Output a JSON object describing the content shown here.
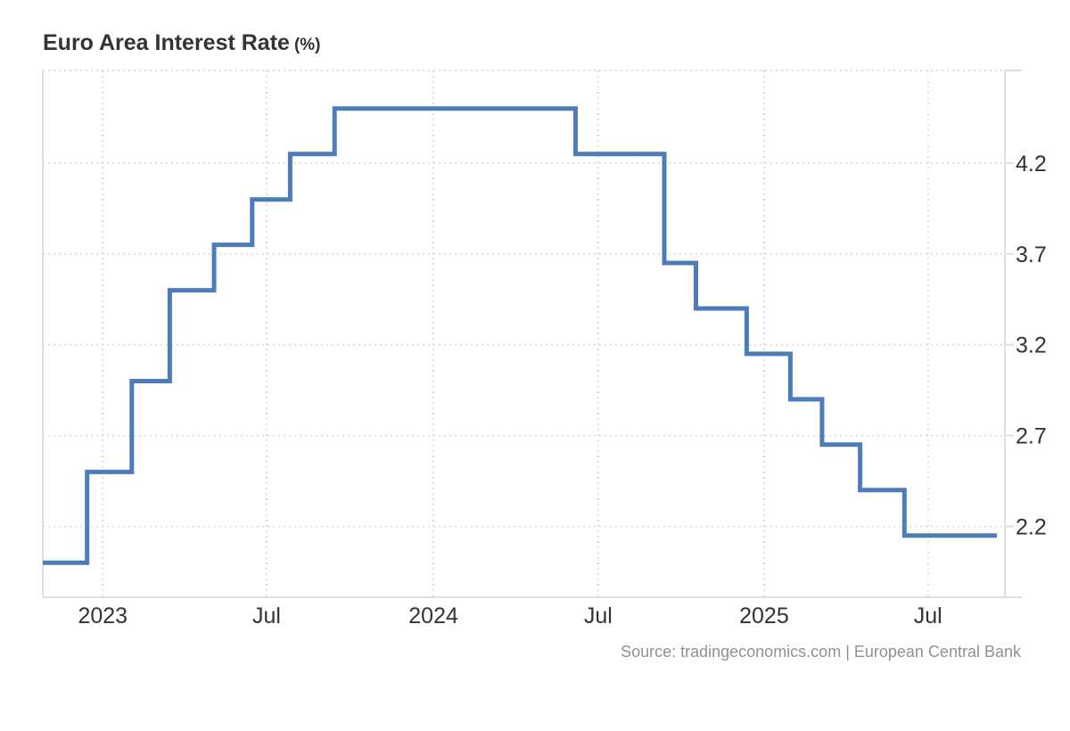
{
  "header": {
    "title": "Euro Area Interest Rate",
    "title_suffix": "(%)"
  },
  "footer": {
    "source": "Source: tradingeconomics.com | European Central Bank"
  },
  "chart_data": {
    "type": "line",
    "step": true,
    "title": "Euro Area Interest Rate (%)",
    "ylabel": "",
    "xlabel": "",
    "legend": "none",
    "grid": "dotted",
    "series": [
      {
        "name": "Euro Area Interest Rate",
        "points": [
          [
            "2022-10-27",
            2.0
          ],
          [
            "2022-12-15",
            2.5
          ],
          [
            "2023-02-02",
            3.0
          ],
          [
            "2023-03-16",
            3.5
          ],
          [
            "2023-05-04",
            3.75
          ],
          [
            "2023-06-15",
            4.0
          ],
          [
            "2023-07-27",
            4.25
          ],
          [
            "2023-09-14",
            4.5
          ],
          [
            "2024-06-06",
            4.25
          ],
          [
            "2024-09-12",
            3.65
          ],
          [
            "2024-10-17",
            3.4
          ],
          [
            "2024-12-12",
            3.15
          ],
          [
            "2025-01-30",
            2.9
          ],
          [
            "2025-03-06",
            2.65
          ],
          [
            "2025-04-17",
            2.4
          ],
          [
            "2025-06-05",
            2.15
          ],
          [
            "2025-09-15",
            2.15
          ]
        ]
      }
    ],
    "x_ticks": [
      {
        "date": "2023-01-01",
        "label": "2023"
      },
      {
        "date": "2023-07-01",
        "label": "Jul"
      },
      {
        "date": "2024-01-01",
        "label": "2024"
      },
      {
        "date": "2024-07-01",
        "label": "Jul"
      },
      {
        "date": "2025-01-01",
        "label": "2025"
      },
      {
        "date": "2025-07-01",
        "label": "Jul"
      }
    ],
    "y_ticks": [
      {
        "value": 4.2,
        "label": "4.2"
      },
      {
        "value": 3.7,
        "label": "3.7"
      },
      {
        "value": 3.2,
        "label": "3.2"
      },
      {
        "value": 2.7,
        "label": "2.7"
      },
      {
        "value": 2.2,
        "label": "2.2"
      }
    ],
    "xlim": [
      "2022-10-27",
      "2025-09-24"
    ],
    "ylim": [
      1.81,
      4.71
    ],
    "colors": {
      "line": "#4d7cba",
      "grid": "#dedede",
      "axis": "#dedede",
      "tick_text": "#333333",
      "title_text": "#333333",
      "source_text": "#909090",
      "background": "#ffffff"
    }
  }
}
